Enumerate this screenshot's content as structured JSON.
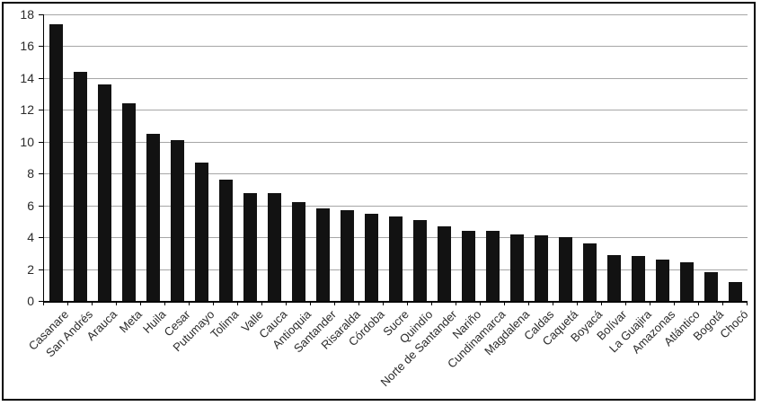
{
  "chart_data": {
    "type": "bar",
    "title": "",
    "xlabel": "",
    "ylabel": "",
    "categories": [
      "Casanare",
      "San Andrés",
      "Arauca",
      "Meta",
      "Huila",
      "Cesar",
      "Putumayo",
      "Tolima",
      "Valle",
      "Cauca",
      "Antioquia",
      "Santander",
      "Risaralda",
      "Córdoba",
      "Sucre",
      "Quindío",
      "Norte de Santander",
      "Nariño",
      "Cundinamarca",
      "Magdalena",
      "Caldas",
      "Caquetá",
      "Boyacá",
      "Bolívar",
      "La Guajira",
      "Amazonas",
      "Atlántico",
      "Bogotá",
      "Chocó"
    ],
    "values": [
      17.4,
      14.4,
      13.6,
      12.4,
      10.5,
      10.1,
      8.7,
      7.6,
      6.8,
      6.8,
      6.2,
      5.8,
      5.7,
      5.5,
      5.3,
      5.1,
      4.7,
      4.4,
      4.4,
      4.2,
      4.1,
      4.0,
      3.6,
      2.9,
      2.8,
      2.6,
      2.4,
      1.8,
      1.2
    ],
    "ylim": [
      0,
      18
    ],
    "yticks": [
      0,
      2,
      4,
      6,
      8,
      10,
      12,
      14,
      16,
      18
    ],
    "grid": true,
    "legend": "none",
    "bar_color": "#121212",
    "gridline_color": "#a6a6a6",
    "axis_color": "#000000",
    "label_color": "#2b2b2b",
    "frame_border_color": "#000000",
    "background_color": "#ffffff"
  }
}
